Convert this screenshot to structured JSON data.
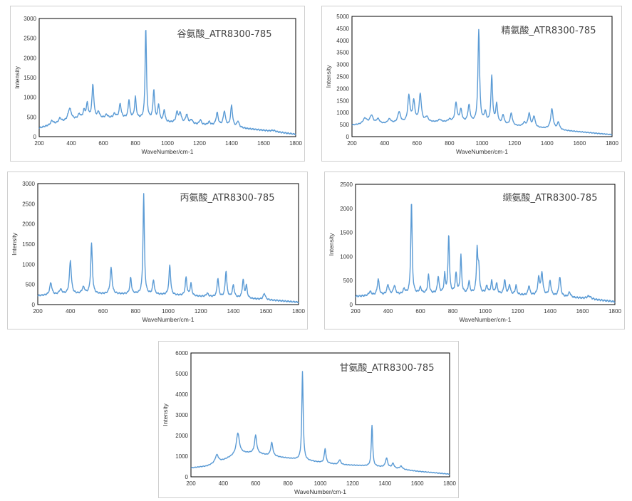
{
  "line_color": "#5b9bd5",
  "chart_data": [
    {
      "type": "line",
      "title": "谷氨酸_ATR8300-785",
      "xlabel": "WaveNumber/cm-1",
      "ylabel": "Intensity",
      "xlim": [
        200,
        1800
      ],
      "ylim": [
        0,
        3000
      ],
      "xticks": [
        "200",
        "400",
        "600",
        "800",
        "1000",
        "1200",
        "1400",
        "1600",
        "1800"
      ],
      "yticks": [
        "0",
        "500",
        "1000",
        "1500",
        "2000",
        "2500",
        "3000"
      ],
      "grid": false,
      "series": [
        {
          "baseline": [
            [
              200,
              220
            ],
            [
              300,
              320
            ],
            [
              400,
              420
            ],
            [
              500,
              440
            ],
            [
              600,
              470
            ],
            [
              700,
              480
            ],
            [
              800,
              460
            ],
            [
              900,
              420
            ],
            [
              1000,
              360
            ],
            [
              1100,
              340
            ],
            [
              1200,
              300
            ],
            [
              1300,
              280
            ],
            [
              1400,
              250
            ],
            [
              1500,
              200
            ],
            [
              1600,
              160
            ],
            [
              1700,
              110
            ],
            [
              1800,
              60
            ]
          ],
          "peaks": [
            [
              280,
              100,
              10
            ],
            [
              330,
              110,
              10
            ],
            [
              390,
              300,
              12
            ],
            [
              450,
              120,
              10
            ],
            [
              480,
              200,
              8
            ],
            [
              500,
              370,
              7
            ],
            [
              535,
              850,
              7
            ],
            [
              570,
              150,
              8
            ],
            [
              620,
              80,
              8
            ],
            [
              670,
              100,
              8
            ],
            [
              705,
              350,
              7
            ],
            [
              760,
              460,
              6
            ],
            [
              800,
              530,
              6
            ],
            [
              865,
              2330,
              5
            ],
            [
              915,
              760,
              6
            ],
            [
              945,
              400,
              6
            ],
            [
              980,
              300,
              6
            ],
            [
              1060,
              260,
              8
            ],
            [
              1080,
              240,
              8
            ],
            [
              1120,
              220,
              8
            ],
            [
              1150,
              100,
              8
            ],
            [
              1205,
              120,
              8
            ],
            [
              1260,
              80,
              8
            ],
            [
              1310,
              320,
              8
            ],
            [
              1355,
              370,
              8
            ],
            [
              1400,
              530,
              7
            ],
            [
              1440,
              150,
              8
            ],
            [
              1660,
              30,
              15
            ]
          ]
        }
      ]
    },
    {
      "type": "line",
      "title": "精氨酸_ATR8300-785",
      "xlabel": "WaveNumber/cm-1",
      "ylabel": "Intensity",
      "xlim": [
        200,
        1800
      ],
      "ylim": [
        0,
        5000
      ],
      "xticks": [
        "200",
        "400",
        "600",
        "800",
        "1000",
        "1200",
        "1400",
        "1600",
        "1800"
      ],
      "yticks": [
        "0",
        "500",
        "1000",
        "1500",
        "2000",
        "2500",
        "3000",
        "3500",
        "4000",
        "4500",
        "5000"
      ],
      "grid": false,
      "series": [
        {
          "baseline": [
            [
              200,
              480
            ],
            [
              400,
              520
            ],
            [
              600,
              600
            ],
            [
              800,
              600
            ],
            [
              1000,
              560
            ],
            [
              1200,
              440
            ],
            [
              1400,
              330
            ],
            [
              1500,
              260
            ],
            [
              1600,
              200
            ],
            [
              1700,
              140
            ],
            [
              1800,
              80
            ]
          ],
          "peaks": [
            [
              280,
              250,
              15
            ],
            [
              320,
              350,
              12
            ],
            [
              360,
              200,
              12
            ],
            [
              430,
              180,
              12
            ],
            [
              490,
              450,
              10
            ],
            [
              550,
              1080,
              8
            ],
            [
              580,
              850,
              8
            ],
            [
              620,
              1150,
              8
            ],
            [
              660,
              200,
              10
            ],
            [
              740,
              100,
              10
            ],
            [
              800,
              100,
              10
            ],
            [
              840,
              780,
              8
            ],
            [
              870,
              500,
              8
            ],
            [
              920,
              700,
              8
            ],
            [
              980,
              3850,
              6
            ],
            [
              1020,
              420,
              8
            ],
            [
              1060,
              1950,
              6
            ],
            [
              1090,
              800,
              7
            ],
            [
              1130,
              380,
              8
            ],
            [
              1180,
              500,
              8
            ],
            [
              1260,
              150,
              10
            ],
            [
              1290,
              550,
              8
            ],
            [
              1320,
              450,
              8
            ],
            [
              1430,
              820,
              9
            ],
            [
              1470,
              300,
              8
            ]
          ]
        }
      ]
    },
    {
      "type": "line",
      "title": "丙氨酸_ATR8300-785",
      "xlabel": "WaveNumber/cm-1",
      "ylabel": "Intensity",
      "xlim": [
        200,
        1800
      ],
      "ylim": [
        0,
        3000
      ],
      "xticks": [
        "200",
        "400",
        "600",
        "800",
        "1000",
        "1200",
        "1400",
        "1600",
        "1800"
      ],
      "yticks": [
        "0",
        "500",
        "1000",
        "1500",
        "2000",
        "2500",
        "3000"
      ],
      "grid": false,
      "series": [
        {
          "baseline": [
            [
              200,
              220
            ],
            [
              400,
              260
            ],
            [
              600,
              260
            ],
            [
              800,
              260
            ],
            [
              1000,
              240
            ],
            [
              1200,
              200
            ],
            [
              1400,
              170
            ],
            [
              1600,
              120
            ],
            [
              1800,
              60
            ]
          ],
          "peaks": [
            [
              280,
              300,
              8
            ],
            [
              340,
              120,
              10
            ],
            [
              400,
              820,
              7
            ],
            [
              480,
              160,
              10
            ],
            [
              530,
              1250,
              6
            ],
            [
              650,
              640,
              7
            ],
            [
              770,
              400,
              6
            ],
            [
              850,
              2480,
              5
            ],
            [
              910,
              350,
              6
            ],
            [
              1010,
              740,
              6
            ],
            [
              1110,
              450,
              6
            ],
            [
              1140,
              300,
              6
            ],
            [
              1240,
              80,
              8
            ],
            [
              1305,
              460,
              6
            ],
            [
              1355,
              650,
              6
            ],
            [
              1400,
              300,
              7
            ],
            [
              1460,
              450,
              6
            ],
            [
              1480,
              300,
              6
            ],
            [
              1590,
              150,
              8
            ]
          ]
        }
      ]
    },
    {
      "type": "line",
      "title": "缬氨酸_ATR8300-785",
      "xlabel": "WaveNumber/cm-1",
      "ylabel": "Intensity",
      "xlim": [
        200,
        1800
      ],
      "ylim": [
        0,
        2500
      ],
      "xticks": [
        "200",
        "400",
        "600",
        "800",
        "1000",
        "1200",
        "1400",
        "1600",
        "1800"
      ],
      "yticks": [
        "0",
        "500",
        "1000",
        "1500",
        "2000",
        "2500"
      ],
      "grid": false,
      "series": [
        {
          "baseline": [
            [
              200,
              170
            ],
            [
              400,
              200
            ],
            [
              600,
              220
            ],
            [
              800,
              230
            ],
            [
              1000,
              230
            ],
            [
              1200,
              200
            ],
            [
              1400,
              180
            ],
            [
              1600,
              130
            ],
            [
              1800,
              60
            ]
          ],
          "peaks": [
            [
              290,
              80,
              10
            ],
            [
              340,
              330,
              7
            ],
            [
              400,
              200,
              8
            ],
            [
              440,
              180,
              8
            ],
            [
              500,
              100,
              8
            ],
            [
              545,
              1920,
              5
            ],
            [
              600,
              120,
              8
            ],
            [
              650,
              380,
              6
            ],
            [
              710,
              350,
              6
            ],
            [
              750,
              380,
              5
            ],
            [
              775,
              1220,
              5
            ],
            [
              820,
              400,
              6
            ],
            [
              850,
              780,
              5
            ],
            [
              900,
              240,
              6
            ],
            [
              950,
              890,
              5
            ],
            [
              960,
              500,
              5
            ],
            [
              1010,
              150,
              7
            ],
            [
              1040,
              250,
              6
            ],
            [
              1070,
              220,
              6
            ],
            [
              1120,
              300,
              6
            ],
            [
              1150,
              200,
              6
            ],
            [
              1190,
              190,
              6
            ],
            [
              1270,
              200,
              6
            ],
            [
              1330,
              350,
              7
            ],
            [
              1350,
              450,
              7
            ],
            [
              1400,
              300,
              7
            ],
            [
              1460,
              400,
              7
            ],
            [
              1520,
              100,
              8
            ],
            [
              1640,
              60,
              15
            ]
          ]
        }
      ]
    },
    {
      "type": "line",
      "title": "甘氨酸_ATR8300-785",
      "xlabel": "WaveNumber/cm-1",
      "ylabel": "Intensity",
      "xlim": [
        200,
        1800
      ],
      "ylim": [
        0,
        6000
      ],
      "xticks": [
        "200",
        "400",
        "600",
        "800",
        "1000",
        "1200",
        "1400",
        "1600",
        "1800"
      ],
      "yticks": [
        "0",
        "1000",
        "2000",
        "3000",
        "4000",
        "5000",
        "6000"
      ],
      "grid": false,
      "series": [
        {
          "baseline": [
            [
              200,
              430
            ],
            [
              300,
              520
            ],
            [
              400,
              800
            ],
            [
              500,
              1150
            ],
            [
              600,
              1150
            ],
            [
              700,
              1000
            ],
            [
              800,
              900
            ],
            [
              900,
              800
            ],
            [
              1000,
              700
            ],
            [
              1100,
              600
            ],
            [
              1200,
              560
            ],
            [
              1300,
              520
            ],
            [
              1400,
              460
            ],
            [
              1500,
              360
            ],
            [
              1600,
              270
            ],
            [
              1700,
              200
            ],
            [
              1800,
              130
            ]
          ],
          "peaks": [
            [
              360,
              380,
              12
            ],
            [
              490,
              1000,
              11
            ],
            [
              600,
              850,
              8
            ],
            [
              700,
              650,
              8
            ],
            [
              890,
              4280,
              5
            ],
            [
              1030,
              700,
              6
            ],
            [
              1120,
              230,
              8
            ],
            [
              1320,
              2000,
              5
            ],
            [
              1410,
              450,
              8
            ],
            [
              1450,
              230,
              8
            ],
            [
              1500,
              150,
              10
            ]
          ]
        }
      ]
    }
  ]
}
